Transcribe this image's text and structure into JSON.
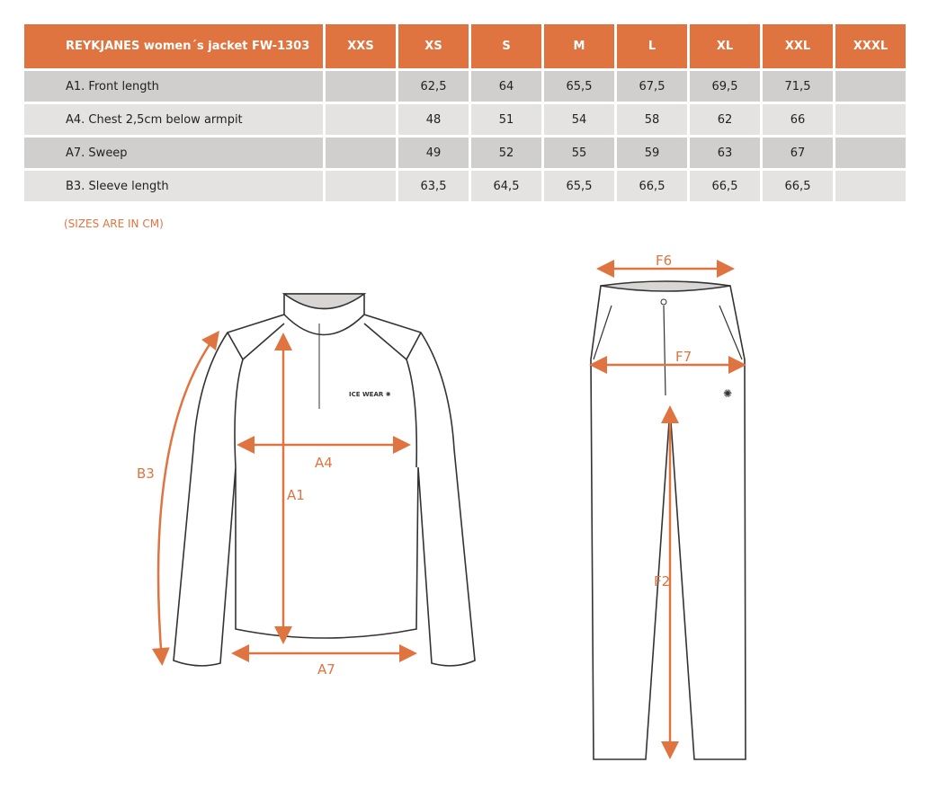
{
  "table": {
    "title": "REYKJANES women´s jacket FW-1303",
    "sizes": [
      "XXS",
      "XS",
      "S",
      "M",
      "L",
      "XL",
      "XXL",
      "XXXL"
    ],
    "rows": [
      {
        "label": "A1. Front length",
        "values": [
          "",
          "62,5",
          "64",
          "65,5",
          "67,5",
          "69,5",
          "71,5",
          ""
        ]
      },
      {
        "label": "A4. Chest 2,5cm below armpit",
        "values": [
          "",
          "48",
          "51",
          "54",
          "58",
          "62",
          "66",
          ""
        ]
      },
      {
        "label": "A7. Sweep",
        "values": [
          "",
          "49",
          "52",
          "55",
          "59",
          "63",
          "67",
          ""
        ]
      },
      {
        "label": "B3. Sleeve length",
        "values": [
          "",
          "63,5",
          "64,5",
          "65,5",
          "66,5",
          "66,5",
          "66,5",
          ""
        ]
      }
    ]
  },
  "note": "(SIZES ARE IN CM)",
  "diagram": {
    "jacket_labels": {
      "a1": "A1",
      "a4": "A4",
      "a7": "A7",
      "b3": "B3"
    },
    "pants_labels": {
      "f6": "F6",
      "f7": "F7",
      "f2": "F2"
    },
    "logo": "ICE WEAR",
    "accent_color": "#E07440"
  }
}
